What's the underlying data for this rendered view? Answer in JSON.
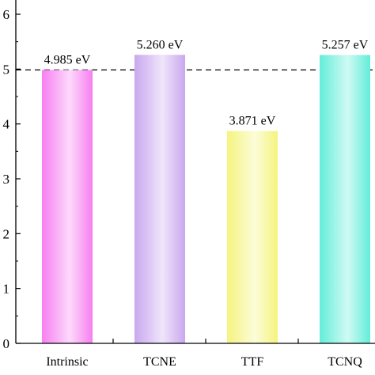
{
  "chart_data": {
    "type": "bar",
    "categories": [
      "Intrinsic",
      "TCNE",
      "TTF",
      "TCNQ"
    ],
    "values": [
      4.985,
      5.26,
      3.871,
      5.257
    ],
    "data_labels": [
      "4.985 eV",
      "5.260 eV",
      "3.871 eV",
      "5.257 eV"
    ],
    "title": "",
    "xlabel": "",
    "ylabel": "",
    "ylim": [
      0,
      6
    ],
    "yticks": [
      "0",
      "1",
      "2",
      "3",
      "4",
      "5",
      "6"
    ],
    "reference_line": {
      "value": 4.985,
      "style": "dashed"
    },
    "bar_colors": [
      "#f77ff0",
      "#c9a7ef",
      "#f5f47f",
      "#63edd9"
    ],
    "grid": false,
    "legend": "none"
  }
}
